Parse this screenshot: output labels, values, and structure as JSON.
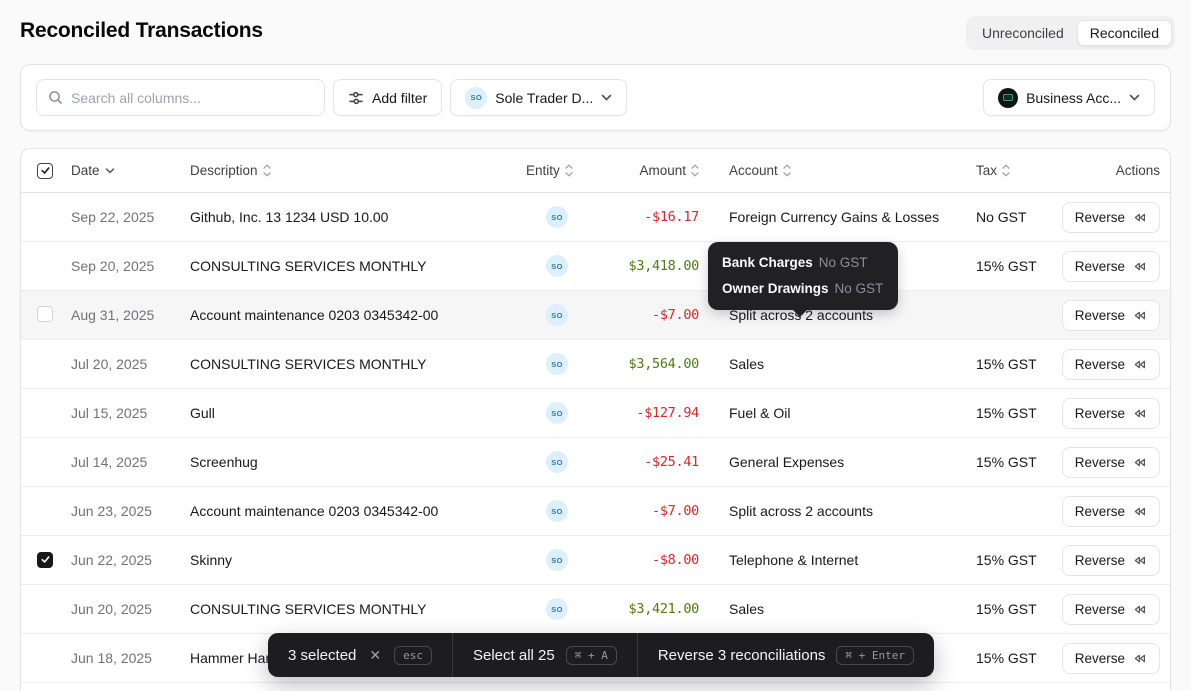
{
  "header": {
    "title": "Reconciled Transactions",
    "toggle": {
      "options": [
        "Unreconciled",
        "Reconciled"
      ],
      "active": "Reconciled"
    }
  },
  "filters": {
    "search_placeholder": "Search all columns...",
    "add_filter_label": "Add filter",
    "entity_filter": {
      "badge": "SO",
      "label": "Sole Trader D..."
    },
    "account_filter": {
      "label": "Business Acc..."
    }
  },
  "table": {
    "columns": [
      "Date",
      "Description",
      "Entity",
      "Amount",
      "Account",
      "Tax",
      "Actions"
    ],
    "sorted_by": "Date",
    "action_label": "Reverse",
    "rows": [
      {
        "date": "Sep 22, 2025",
        "description": "Github, Inc. 13 1234 USD 10.00",
        "entity": "SO",
        "amount": "-$16.17",
        "account": "Foreign Currency Gains & Losses",
        "split": false,
        "tax": "No GST",
        "checkbox": "none",
        "hover": false
      },
      {
        "date": "Sep 20, 2025",
        "description": "CONSULTING SERVICES MONTHLY",
        "entity": "SO",
        "amount": "$3,418.00",
        "account": "",
        "split": false,
        "tax": "15% GST",
        "checkbox": "none",
        "hover": false
      },
      {
        "date": "Aug 31, 2025",
        "description": "Account maintenance 0203 0345342-00",
        "entity": "SO",
        "amount": "-$7.00",
        "account": "Split across 2 accounts",
        "split": true,
        "tax": "",
        "checkbox": "empty",
        "hover": true
      },
      {
        "date": "Jul 20, 2025",
        "description": "CONSULTING SERVICES MONTHLY",
        "entity": "SO",
        "amount": "$3,564.00",
        "account": "Sales",
        "split": false,
        "tax": "15% GST",
        "checkbox": "none",
        "hover": false
      },
      {
        "date": "Jul 15, 2025",
        "description": "Gull",
        "entity": "SO",
        "amount": "-$127.94",
        "account": "Fuel & Oil",
        "split": false,
        "tax": "15% GST",
        "checkbox": "none",
        "hover": false
      },
      {
        "date": "Jul 14, 2025",
        "description": "Screenhug",
        "entity": "SO",
        "amount": "-$25.41",
        "account": "General Expenses",
        "split": false,
        "tax": "15% GST",
        "checkbox": "none",
        "hover": false
      },
      {
        "date": "Jun 23, 2025",
        "description": "Account maintenance 0203 0345342-00",
        "entity": "SO",
        "amount": "-$7.00",
        "account": "Split across 2 accounts",
        "split": true,
        "tax": "",
        "checkbox": "none",
        "hover": false
      },
      {
        "date": "Jun 22, 2025",
        "description": "Skinny",
        "entity": "SO",
        "amount": "-$8.00",
        "account": "Telephone & Internet",
        "split": false,
        "tax": "15% GST",
        "checkbox": "checked",
        "hover": false
      },
      {
        "date": "Jun 20, 2025",
        "description": "CONSULTING SERVICES MONTHLY",
        "entity": "SO",
        "amount": "$3,421.00",
        "account": "Sales",
        "split": false,
        "tax": "15% GST",
        "checkbox": "none",
        "hover": false
      },
      {
        "date": "Jun 18, 2025",
        "description": "Hammer Har",
        "entity": "",
        "amount": "",
        "account": "",
        "split": false,
        "tax": "15% GST",
        "checkbox": "none",
        "hover": false
      }
    ]
  },
  "tooltip": {
    "rows": [
      {
        "account": "Bank Charges",
        "tax": "No GST"
      },
      {
        "account": "Owner Drawings",
        "tax": "No GST"
      }
    ]
  },
  "selection_bar": {
    "selected_label": "3 selected",
    "esc_key": "esc",
    "select_all_label": "Select all 25",
    "select_all_key": "⌘ + A",
    "reverse_label": "Reverse 3 reconciliations",
    "reverse_key": "⌘ + Enter"
  },
  "icons": {
    "search": "magnifier",
    "add-filter": "sliders",
    "chevron-down": "⌄",
    "sort": "up-down-chevrons",
    "reverse": "rewind-double-left-triangles",
    "close": "✕",
    "bank-account": "dark-circle-card",
    "entity": "initials-circle"
  },
  "colors": {
    "positive_amount": "#4d7c0f",
    "negative_amount": "#dc2626",
    "entity_badge_bg": "#ddeffa",
    "entity_badge_text": "#2e7ca0",
    "tooltip_bg": "#212124",
    "selection_bar_bg": "#1d1d20",
    "card_border": "#e4e4e7"
  }
}
